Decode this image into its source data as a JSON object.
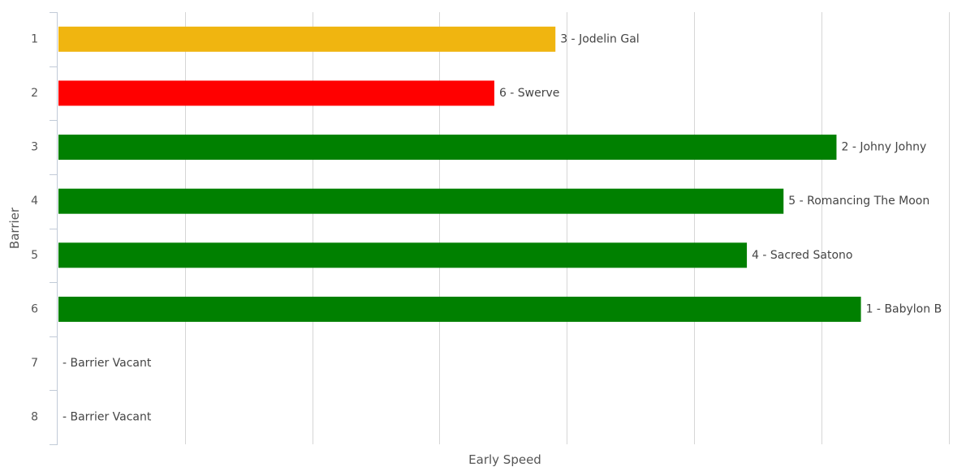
{
  "chart_data": {
    "type": "bar",
    "orientation": "horizontal",
    "title": "",
    "xlabel": "Early Speed",
    "ylabel": "Barrier",
    "categories": [
      "1",
      "2",
      "3",
      "4",
      "5",
      "6",
      "7",
      "8"
    ],
    "values": [
      61,
      53.5,
      95.5,
      89,
      84.5,
      98.5,
      0,
      0
    ],
    "data_labels": [
      "3 - Jodelin Gal",
      "6 - Swerve",
      "2 - Johny Johny",
      "5 - Romancing The Moon",
      "4 - Sacred Satono",
      "1 - Babylon B",
      "- Barrier Vacant",
      "- Barrier Vacant"
    ],
    "bar_colors": [
      "#f0b510",
      "#ff0000",
      "#008000",
      "#008000",
      "#008000",
      "#008000",
      "#008000",
      "#008000"
    ],
    "xlim": [
      0,
      110
    ],
    "x_gridline_step": 15.625,
    "grid": true,
    "legend": false,
    "colors": {
      "gridline": "#d6d6d6",
      "axis_line": "#c2cbd8",
      "tick_text": "#555555",
      "label_text": "#444444"
    }
  }
}
